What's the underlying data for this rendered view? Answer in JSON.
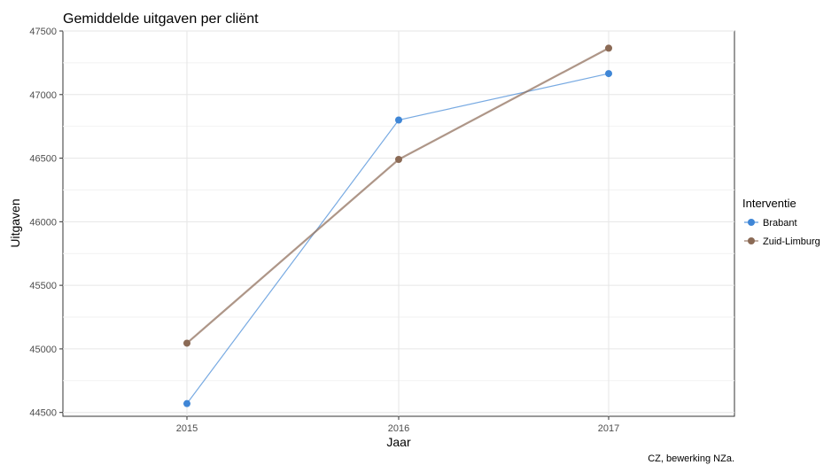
{
  "chart_data": {
    "type": "line",
    "title": "Gemiddelde uitgaven per cliënt",
    "xlabel": "Jaar",
    "ylabel": "Uitgaven",
    "caption": "CZ, bewerking NZa.",
    "categories": [
      "2015",
      "2016",
      "2017"
    ],
    "y_ticks": [
      "44500",
      "45000",
      "45500",
      "46000",
      "46500",
      "47000",
      "47500"
    ],
    "ylim": [
      44470,
      47500
    ],
    "grid": true,
    "legend": {
      "title": "Interventie",
      "position": "right"
    },
    "series": [
      {
        "name": "Brabant",
        "values": [
          44570,
          46800,
          47165
        ],
        "color": "#3f86d6"
      },
      {
        "name": "Zuid-Limburg",
        "values": [
          45045,
          46490,
          47365
        ],
        "color": "#8b6a55"
      }
    ]
  }
}
